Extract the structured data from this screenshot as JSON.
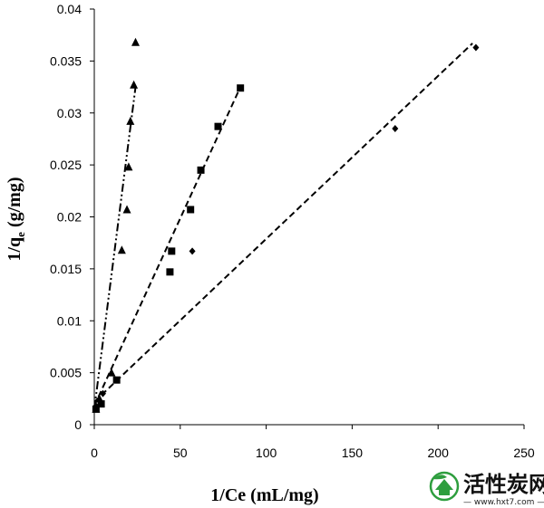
{
  "chart_data": {
    "type": "scatter",
    "xlabel": "1/Ce (mL/mg)",
    "ylabel_main": "1/q",
    "ylabel_sub": "e",
    "ylabel_tail": " (g/mg)",
    "xlim": [
      0,
      250
    ],
    "ylim": [
      0,
      0.04
    ],
    "x_ticks": [
      0,
      50,
      100,
      150,
      200,
      250
    ],
    "y_ticks": [
      0,
      0.005,
      0.01,
      0.015,
      0.02,
      0.025,
      0.03,
      0.035,
      0.04
    ],
    "x_tick_labels": [
      "0",
      "50",
      "100",
      "150",
      "200",
      "250"
    ],
    "y_tick_labels": [
      "0",
      "0.005",
      "0.01",
      "0.015",
      "0.02",
      "0.025",
      "0.03",
      "0.035",
      "0.04"
    ],
    "grid": false,
    "series": [
      {
        "marker": "triangle",
        "color": "#000000",
        "line_style": "dash-dot-dot",
        "points": [
          [
            1,
            0.0015
          ],
          [
            3,
            0.0025
          ],
          [
            10,
            0.005
          ],
          [
            16,
            0.0168
          ],
          [
            19,
            0.0207
          ],
          [
            20,
            0.0248
          ],
          [
            21,
            0.0292
          ],
          [
            23,
            0.0327
          ],
          [
            24,
            0.0368
          ]
        ],
        "fit": [
          [
            0,
            0.0015
          ],
          [
            24,
            0.0325
          ]
        ]
      },
      {
        "marker": "square",
        "color": "#000000",
        "line_style": "dashed",
        "points": [
          [
            1,
            0.0015
          ],
          [
            4,
            0.002
          ],
          [
            13,
            0.0043
          ],
          [
            44,
            0.0147
          ],
          [
            45,
            0.0167
          ],
          [
            56,
            0.0207
          ],
          [
            62,
            0.0245
          ],
          [
            72,
            0.0287
          ],
          [
            85,
            0.0324
          ]
        ],
        "fit": [
          [
            0,
            0.0018
          ],
          [
            85,
            0.0325
          ]
        ]
      },
      {
        "marker": "diamond",
        "color": "#000000",
        "line_style": "dashed",
        "points": [
          [
            1,
            0.0018
          ],
          [
            5,
            0.003
          ],
          [
            57,
            0.0167
          ],
          [
            175,
            0.0285
          ],
          [
            222,
            0.0363
          ]
        ],
        "fit": [
          [
            0,
            0.0022
          ],
          [
            220,
            0.0367
          ]
        ]
      }
    ]
  },
  "watermark": {
    "cn_text": "活性炭网",
    "url_text": "— www.hxt7.com —",
    "icon": "leaf-house-logo-icon",
    "color": "#2e9e3e"
  }
}
